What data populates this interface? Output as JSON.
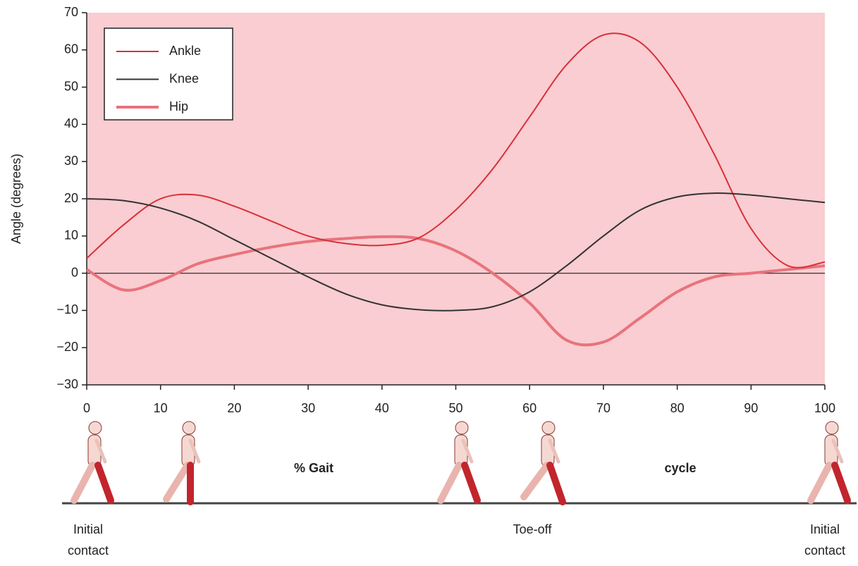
{
  "chart_data": {
    "type": "line",
    "x": [
      0,
      5,
      10,
      15,
      20,
      25,
      30,
      35,
      40,
      45,
      50,
      55,
      60,
      65,
      70,
      75,
      80,
      85,
      90,
      95,
      100
    ],
    "series": [
      {
        "name": "Ankle",
        "color": "#d83038",
        "values": [
          4,
          13,
          20,
          21,
          18,
          14,
          10,
          8,
          7.5,
          9.5,
          17,
          28,
          42,
          56,
          64,
          62,
          50,
          32,
          12,
          2,
          3
        ]
      },
      {
        "name": "Knee",
        "color": "#333333",
        "values": [
          20,
          19.5,
          17.5,
          14,
          9,
          4,
          -1,
          -5.5,
          -8.5,
          -9.8,
          -10,
          -9,
          -5,
          2,
          10,
          17,
          20.5,
          21.5,
          21,
          20,
          19
        ]
      },
      {
        "name": "Hip",
        "color": "#e8737c",
        "values": [
          1,
          -4.5,
          -2,
          2.5,
          5,
          7,
          8.5,
          9.3,
          9.8,
          9.3,
          6,
          0,
          -8,
          -18,
          -18.5,
          -12,
          -5,
          -1,
          0,
          1,
          2
        ]
      }
    ],
    "xlim": [
      0,
      100
    ],
    "xticks": [
      0,
      10,
      20,
      30,
      40,
      50,
      60,
      70,
      80,
      90,
      100
    ],
    "ylim": [
      -30,
      70
    ],
    "yticks": [
      {
        "value": -30,
        "label": "−30"
      },
      {
        "value": -20,
        "label": "−20"
      },
      {
        "value": -10,
        "label": "−10"
      },
      0,
      10,
      20,
      30,
      40,
      50,
      60,
      70
    ],
    "ylabel": "Angle (degrees)",
    "xlabel_parts": [
      "% Gait",
      "cycle"
    ],
    "phase_labels": [
      {
        "lines": [
          "Initial",
          "contact"
        ]
      },
      {
        "lines": [
          "Toe-off"
        ]
      },
      {
        "lines": [
          "Initial",
          "contact"
        ]
      }
    ],
    "legend": "upper left"
  }
}
